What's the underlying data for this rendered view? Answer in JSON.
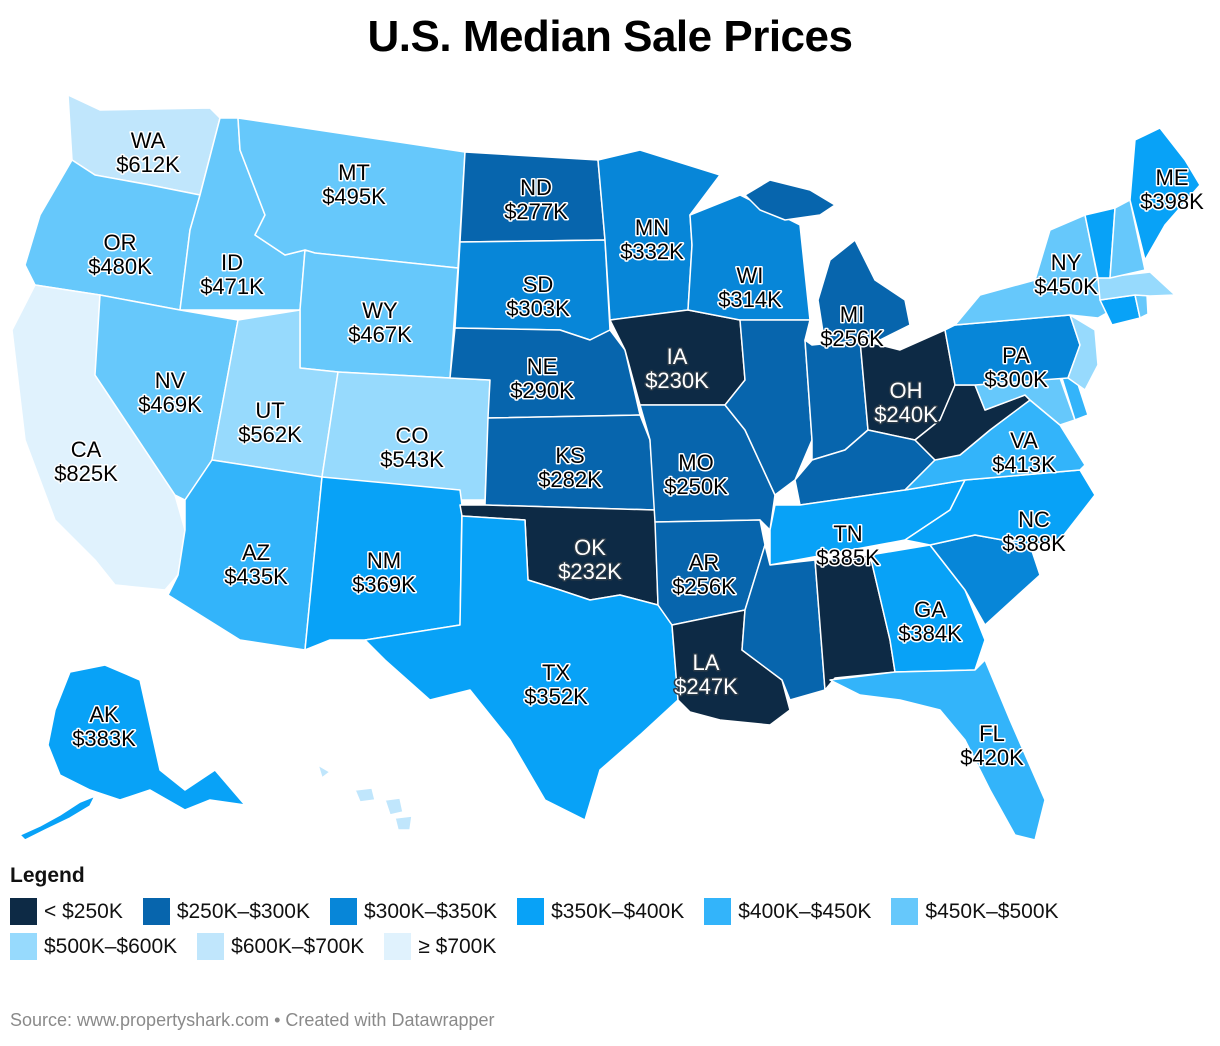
{
  "title": "U.S. Median Sale Prices",
  "legend": {
    "title": "Legend",
    "items": [
      {
        "label": "< $250K",
        "color": "#0d2a45"
      },
      {
        "label": "$250K–$300K",
        "color": "#0765ad"
      },
      {
        "label": "$300K–$350K",
        "color": "#0786d8"
      },
      {
        "label": "$350K–$400K",
        "color": "#08a2f7"
      },
      {
        "label": "$400K–$450K",
        "color": "#33b4fa"
      },
      {
        "label": "$450K–$500K",
        "color": "#66c8fb"
      },
      {
        "label": "$500K–$600K",
        "color": "#97dafd"
      },
      {
        "label": "$600K–$700K",
        "color": "#c0e6fc"
      },
      {
        "label": "≥ $700K",
        "color": "#e0f2fd"
      }
    ]
  },
  "source": "Source: www.propertyshark.com • Created with Datawrapper",
  "states": [
    {
      "abbr": "WA",
      "price": "$612K",
      "value_k": 612
    },
    {
      "abbr": "OR",
      "price": "$480K",
      "value_k": 480
    },
    {
      "abbr": "CA",
      "price": "$825K",
      "value_k": 825
    },
    {
      "abbr": "ID",
      "price": "$471K",
      "value_k": 471
    },
    {
      "abbr": "NV",
      "price": "$469K",
      "value_k": 469
    },
    {
      "abbr": "MT",
      "price": "$495K",
      "value_k": 495
    },
    {
      "abbr": "WY",
      "price": "$467K",
      "value_k": 467
    },
    {
      "abbr": "UT",
      "price": "$562K",
      "value_k": 562
    },
    {
      "abbr": "CO",
      "price": "$543K",
      "value_k": 543
    },
    {
      "abbr": "AZ",
      "price": "$435K",
      "value_k": 435
    },
    {
      "abbr": "NM",
      "price": "$369K",
      "value_k": 369
    },
    {
      "abbr": "ND",
      "price": "$277K",
      "value_k": 277
    },
    {
      "abbr": "SD",
      "price": "$303K",
      "value_k": 303
    },
    {
      "abbr": "NE",
      "price": "$290K",
      "value_k": 290
    },
    {
      "abbr": "KS",
      "price": "$282K",
      "value_k": 282
    },
    {
      "abbr": "OK",
      "price": "$232K",
      "value_k": 232
    },
    {
      "abbr": "TX",
      "price": "$352K",
      "value_k": 352
    },
    {
      "abbr": "MN",
      "price": "$332K",
      "value_k": 332
    },
    {
      "abbr": "IA",
      "price": "$230K",
      "value_k": 230
    },
    {
      "abbr": "MO",
      "price": "$250K",
      "value_k": 250
    },
    {
      "abbr": "AR",
      "price": "$256K",
      "value_k": 256
    },
    {
      "abbr": "LA",
      "price": "$247K",
      "value_k": 247
    },
    {
      "abbr": "WI",
      "price": "$314K",
      "value_k": 314
    },
    {
      "abbr": "MI",
      "price": "$256K",
      "value_k": 256
    },
    {
      "abbr": "OH",
      "price": "$240K",
      "value_k": 240
    },
    {
      "abbr": "PA",
      "price": "$300K",
      "value_k": 300
    },
    {
      "abbr": "NY",
      "price": "$450K",
      "value_k": 450
    },
    {
      "abbr": "ME",
      "price": "$398K",
      "value_k": 398
    },
    {
      "abbr": "VA",
      "price": "$413K",
      "value_k": 413
    },
    {
      "abbr": "NC",
      "price": "$388K",
      "value_k": 388
    },
    {
      "abbr": "TN",
      "price": "$385K",
      "value_k": 385
    },
    {
      "abbr": "GA",
      "price": "$384K",
      "value_k": 384
    },
    {
      "abbr": "FL",
      "price": "$420K",
      "value_k": 420
    },
    {
      "abbr": "AK",
      "price": "$383K",
      "value_k": 383
    }
  ],
  "unlabeled_state_colors": {
    "IL": "#0765ad",
    "IN": "#0765ad",
    "KY": "#0765ad",
    "MS": "#0765ad",
    "AL": "#0d2a45",
    "WV": "#0d2a45",
    "SC": "#0786d8",
    "VT": "#08a2f7",
    "NH": "#66c8fb",
    "MA": "#97dafd",
    "CT": "#08a2f7",
    "RI": "#66c8fb",
    "NJ": "#97dafd",
    "DE": "#33b4fa",
    "MD": "#66c8fb",
    "HI": "#c0e6fc"
  }
}
